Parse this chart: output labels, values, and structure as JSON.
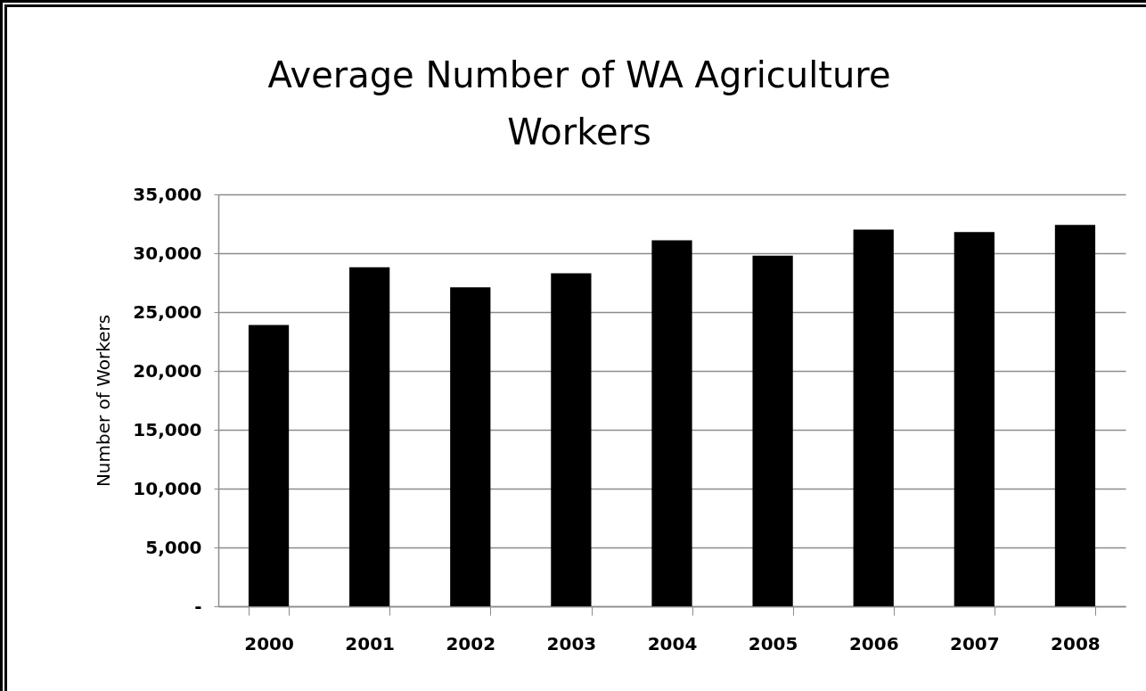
{
  "chart_data": {
    "type": "bar",
    "title": "Average Number of WA Agriculture Workers",
    "ylabel": "Number of Workers",
    "categories": [
      "2000",
      "2001",
      "2002",
      "2003",
      "2004",
      "2005",
      "2006",
      "2007",
      "2008"
    ],
    "values": [
      23900,
      28800,
      27100,
      28300,
      31100,
      29800,
      32000,
      31800,
      32400
    ],
    "color": "#000000",
    "ylim": [
      0,
      35000
    ],
    "yticks": [
      {
        "value": 0,
        "label": "-"
      },
      {
        "value": 5000,
        "label": "5,000"
      },
      {
        "value": 10000,
        "label": "10,000"
      },
      {
        "value": 15000,
        "label": "15,000"
      },
      {
        "value": 20000,
        "label": "20,000"
      },
      {
        "value": 25000,
        "label": "25,000"
      },
      {
        "value": 30000,
        "label": "30,000"
      },
      {
        "value": 35000,
        "label": "35,000"
      }
    ],
    "grid": "y"
  }
}
